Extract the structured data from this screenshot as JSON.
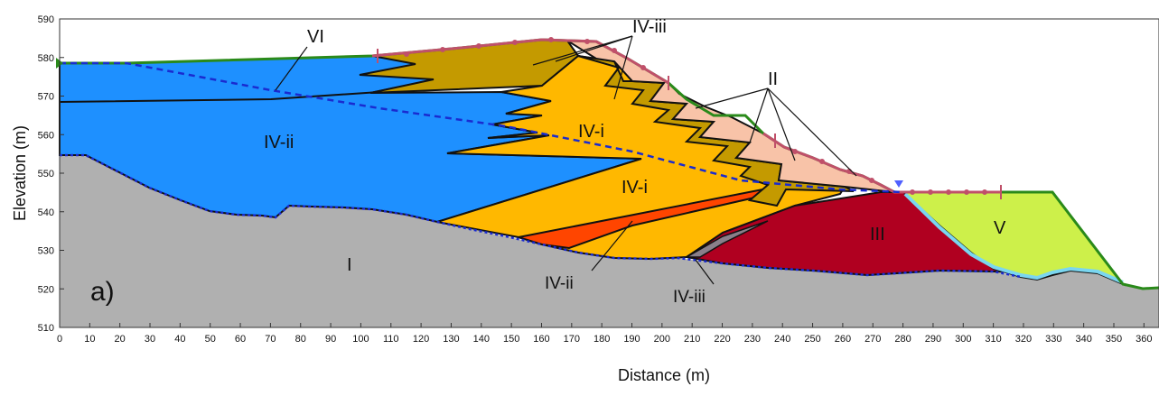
{
  "figure": {
    "panel_label": "a)",
    "xlabel": "Distance (m)",
    "ylabel": "Elevation (m)",
    "x_ticks": [
      "0",
      "10",
      "20",
      "30",
      "40",
      "50",
      "60",
      "70",
      "80",
      "90",
      "100",
      "110",
      "120",
      "130",
      "140",
      "150",
      "160",
      "170",
      "180",
      "190",
      "200",
      "210",
      "220",
      "230",
      "240",
      "250",
      "260",
      "270",
      "280",
      "290",
      "300",
      "310",
      "320",
      "330",
      "340",
      "350",
      "360"
    ],
    "y_ticks": [
      "510",
      "520",
      "530",
      "540",
      "550",
      "560",
      "570",
      "580",
      "590"
    ],
    "xlim": [
      0,
      365
    ],
    "ylim": [
      510,
      590
    ],
    "layers": {
      "I": "I",
      "II": "II",
      "III": "III",
      "IV_i_upper": "IV-i",
      "IV_i_lower": "IV-i",
      "IV_ii_main": "IV-ii",
      "IV_ii_lower": "IV-ii",
      "IV_iii_upper": "IV-iii",
      "IV_iii_lower": "IV-iii",
      "V": "V",
      "VI": "VI"
    },
    "colors": {
      "I_bedrock": "#b0b0b0",
      "IV_ii": "#1e90ff",
      "IV_i": "#ffb800",
      "IV_iii": "#c49a00",
      "II": "#f8c3a8",
      "III": "#b00020",
      "V": "#cdf04a",
      "orange_band": "#ff4500",
      "surface_line": "#2a8a1a",
      "slip_line": "#c0506a",
      "water_table": "#1a2bd0"
    }
  }
}
